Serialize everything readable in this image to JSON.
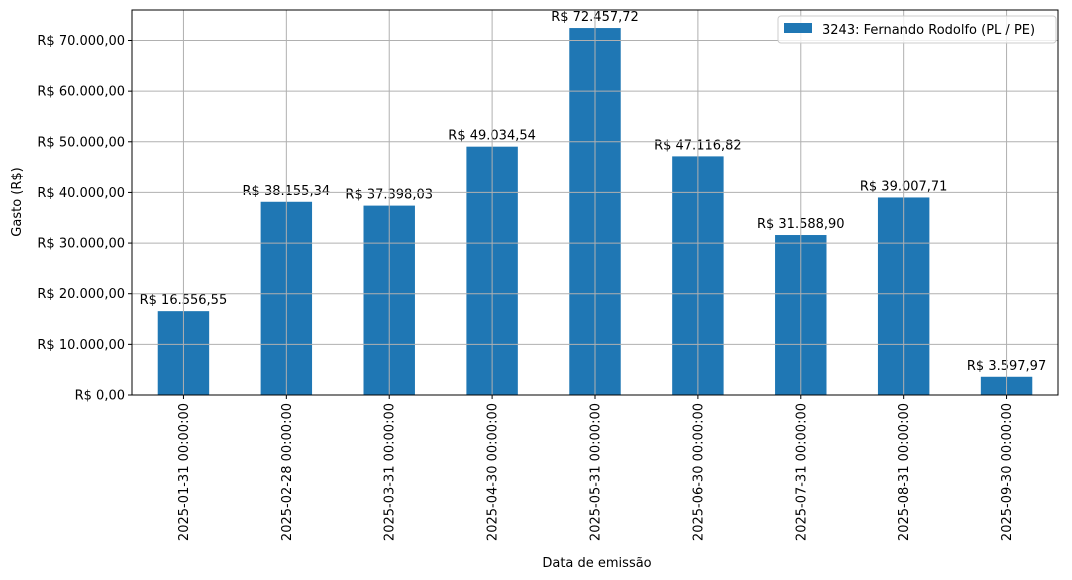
{
  "chart_data": {
    "type": "bar",
    "title": "",
    "xlabel": "Data de emissão",
    "ylabel": "Gasto (R$)",
    "ylim": [
      0,
      76000
    ],
    "grid": true,
    "legend_position": "upper right",
    "categories": [
      "2025-01-31 00:00:00",
      "2025-02-28 00:00:00",
      "2025-03-31 00:00:00",
      "2025-04-30 00:00:00",
      "2025-05-31 00:00:00",
      "2025-06-30 00:00:00",
      "2025-07-31 00:00:00",
      "2025-08-31 00:00:00",
      "2025-09-30 00:00:00"
    ],
    "series": [
      {
        "name": "3243: Fernando Rodolfo (PL / PE)",
        "color": "#1f77b4",
        "values": [
          16556.55,
          38155.34,
          37398.03,
          49034.54,
          72457.72,
          47116.82,
          31588.9,
          39007.71,
          3597.97
        ],
        "labels": [
          "R$ 16.556,55",
          "R$ 38.155,34",
          "R$ 37.398,03",
          "R$ 49.034,54",
          "R$ 72.457,72",
          "R$ 47.116,82",
          "R$ 31.588,90",
          "R$ 39.007,71",
          "R$ 3.597,97"
        ]
      }
    ],
    "yticks": [
      0,
      10000,
      20000,
      30000,
      40000,
      50000,
      60000,
      70000
    ],
    "ytick_labels": [
      "R$ 0,00",
      "R$ 10.000,00",
      "R$ 20.000,00",
      "R$ 30.000,00",
      "R$ 40.000,00",
      "R$ 50.000,00",
      "R$ 60.000,00",
      "R$ 70.000,00"
    ]
  }
}
